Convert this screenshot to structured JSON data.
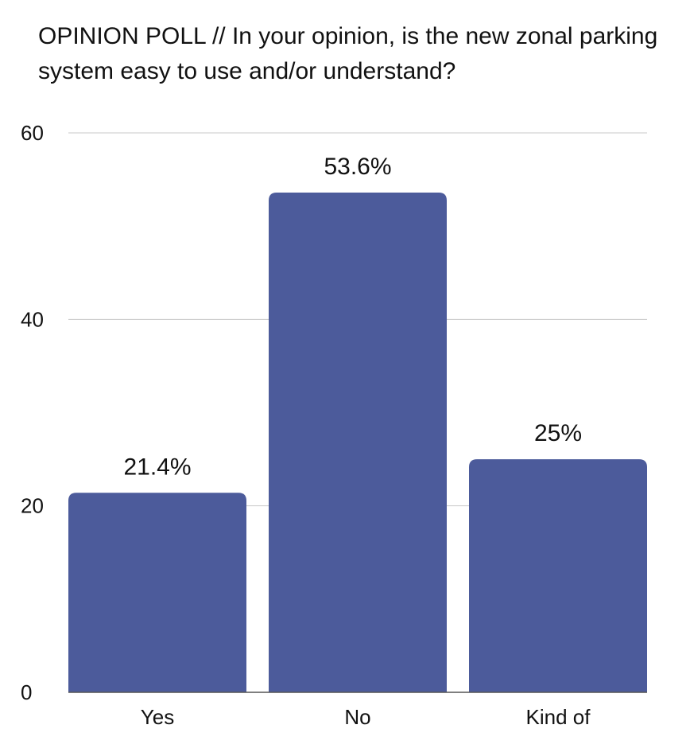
{
  "chart_data": {
    "type": "bar",
    "title": "OPINION POLL // In your opinion, is the new zonal parking system easy to use and/or understand?",
    "categories": [
      "Yes",
      "No",
      "Kind of"
    ],
    "values": [
      21.4,
      53.6,
      25
    ],
    "data_labels": [
      "21.4%",
      "53.6%",
      "25%"
    ],
    "y_ticks": [
      0,
      20,
      40,
      60
    ],
    "ylim": [
      0,
      60
    ],
    "grid": true,
    "legend": "none",
    "bar_color": "#4c5b9b"
  }
}
